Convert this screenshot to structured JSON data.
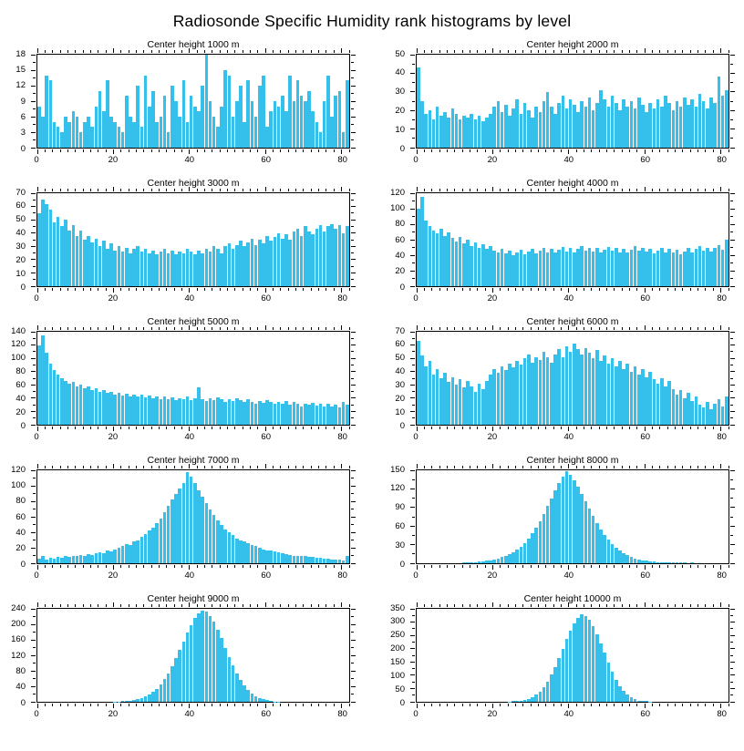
{
  "title": "Radiosonde Specific Humidity rank histograms by level",
  "style": {
    "bar_color": "#35c0ec",
    "axis_color": "#000000",
    "background": "#ffffff"
  },
  "chart_data": [
    {
      "type": "bar",
      "title": "Center height 1000 m",
      "ylim": [
        0,
        18
      ],
      "ystep": 3,
      "xlim": [
        0,
        82
      ],
      "xticks": [
        0,
        20,
        40,
        60,
        80
      ],
      "xminor_step": 2,
      "values": [
        8,
        6,
        14,
        13,
        5,
        4,
        3,
        6,
        5,
        7,
        6,
        3,
        5,
        6,
        4,
        8,
        11,
        7,
        13,
        6,
        5,
        4,
        3,
        10,
        6,
        5,
        12,
        4,
        14,
        8,
        11,
        5,
        6,
        10,
        3,
        12,
        9,
        6,
        13,
        5,
        10,
        8,
        7,
        12,
        18,
        9,
        6,
        4,
        8,
        15,
        14,
        6,
        9,
        12,
        5,
        13,
        9,
        6,
        12,
        14,
        4,
        7,
        9,
        8,
        10,
        7,
        14,
        9,
        13,
        10,
        9,
        11,
        7,
        5,
        3,
        9,
        14,
        6,
        10,
        11,
        3,
        13
      ]
    },
    {
      "type": "bar",
      "title": "Center height 2000 m",
      "ylim": [
        0,
        50
      ],
      "ystep": 10,
      "xlim": [
        0,
        82
      ],
      "xticks": [
        0,
        20,
        40,
        60,
        80
      ],
      "xminor_step": 2,
      "values": [
        43,
        25,
        18,
        20,
        15,
        22,
        17,
        19,
        16,
        21,
        18,
        15,
        17,
        16,
        18,
        15,
        17,
        14,
        16,
        18,
        22,
        25,
        19,
        23,
        17,
        21,
        26,
        18,
        24,
        20,
        16,
        22,
        19,
        25,
        30,
        22,
        18,
        24,
        28,
        21,
        26,
        23,
        19,
        25,
        22,
        27,
        20,
        24,
        31,
        26,
        22,
        28,
        24,
        20,
        26,
        22,
        25,
        21,
        27,
        23,
        19,
        24,
        21,
        26,
        22,
        28,
        24,
        20,
        25,
        22,
        27,
        23,
        26,
        22,
        29,
        25,
        21,
        27,
        24,
        38,
        28,
        31
      ]
    },
    {
      "type": "bar",
      "title": "Center height 3000 m",
      "ylim": [
        0,
        70
      ],
      "ystep": 10,
      "xlim": [
        0,
        82
      ],
      "xticks": [
        0,
        20,
        40,
        60,
        80
      ],
      "xminor_step": 2,
      "values": [
        55,
        65,
        62,
        58,
        48,
        52,
        45,
        50,
        42,
        46,
        38,
        42,
        35,
        38,
        33,
        36,
        30,
        34,
        28,
        32,
        27,
        30,
        26,
        29,
        25,
        28,
        30,
        26,
        28,
        25,
        27,
        24,
        26,
        28,
        25,
        27,
        24,
        26,
        25,
        28,
        26,
        24,
        27,
        25,
        28,
        26,
        30,
        28,
        25,
        30,
        32,
        28,
        31,
        34,
        30,
        33,
        36,
        31,
        35,
        32,
        38,
        34,
        37,
        40,
        36,
        39,
        35,
        41,
        43,
        38,
        45,
        41,
        39,
        43,
        46,
        41,
        45,
        47,
        43,
        46,
        40,
        45
      ]
    },
    {
      "type": "bar",
      "title": "Center height 4000 m",
      "ylim": [
        0,
        120
      ],
      "ystep": 20,
      "xlim": [
        0,
        82
      ],
      "xticks": [
        0,
        20,
        40,
        60,
        80
      ],
      "xminor_step": 2,
      "values": [
        100,
        115,
        85,
        78,
        72,
        68,
        74,
        65,
        70,
        62,
        58,
        63,
        55,
        60,
        52,
        56,
        50,
        54,
        48,
        52,
        46,
        44,
        48,
        42,
        46,
        40,
        44,
        47,
        41,
        45,
        48,
        42,
        46,
        50,
        44,
        48,
        43,
        47,
        51,
        45,
        49,
        44,
        48,
        52,
        46,
        50,
        45,
        49,
        43,
        47,
        51,
        46,
        50,
        44,
        48,
        43,
        47,
        52,
        46,
        50,
        45,
        48,
        42,
        46,
        50,
        44,
        48,
        43,
        47,
        41,
        45,
        49,
        44,
        48,
        52,
        46,
        50,
        45,
        49,
        53,
        47,
        60
      ]
    },
    {
      "type": "bar",
      "title": "Center height 5000 m",
      "ylim": [
        0,
        140
      ],
      "ystep": 20,
      "xlim": [
        0,
        82
      ],
      "xticks": [
        0,
        20,
        40,
        60,
        80
      ],
      "xminor_step": 2,
      "values": [
        120,
        135,
        108,
        92,
        82,
        75,
        70,
        66,
        62,
        65,
        58,
        61,
        55,
        58,
        52,
        55,
        50,
        52,
        48,
        50,
        46,
        48,
        44,
        47,
        43,
        46,
        42,
        45,
        41,
        44,
        40,
        43,
        39,
        42,
        38,
        41,
        37,
        40,
        38,
        42,
        37,
        40,
        56,
        38,
        36,
        40,
        37,
        41,
        38,
        35,
        39,
        36,
        40,
        37,
        34,
        38,
        35,
        32,
        36,
        33,
        37,
        34,
        31,
        35,
        32,
        36,
        30,
        34,
        31,
        28,
        32,
        30,
        33,
        29,
        32,
        28,
        31,
        27,
        30,
        26,
        34,
        30
      ]
    },
    {
      "type": "bar",
      "title": "Center height 6000 m",
      "ylim": [
        0,
        70
      ],
      "ystep": 10,
      "xlim": [
        0,
        82
      ],
      "xticks": [
        0,
        20,
        40,
        60,
        80
      ],
      "xminor_step": 2,
      "values": [
        63,
        52,
        44,
        48,
        38,
        42,
        35,
        39,
        32,
        36,
        30,
        34,
        28,
        33,
        29,
        25,
        31,
        27,
        33,
        38,
        42,
        39,
        44,
        41,
        46,
        43,
        48,
        45,
        50,
        53,
        47,
        51,
        49,
        55,
        51,
        47,
        53,
        57,
        51,
        59,
        55,
        61,
        57,
        53,
        58,
        54,
        50,
        56,
        48,
        52,
        46,
        50,
        44,
        48,
        42,
        46,
        40,
        44,
        38,
        42,
        36,
        40,
        34,
        31,
        35,
        29,
        33,
        27,
        23,
        26,
        20,
        24,
        18,
        21,
        15,
        13,
        17,
        12,
        16,
        19,
        14,
        21
      ]
    },
    {
      "type": "bar",
      "title": "Center height 7000 m",
      "ylim": [
        0,
        120
      ],
      "ystep": 20,
      "xlim": [
        0,
        82
      ],
      "xticks": [
        0,
        20,
        40,
        60,
        80
      ],
      "xminor_step": 2,
      "values": [
        6,
        9,
        5,
        7,
        6,
        8,
        7,
        9,
        8,
        10,
        9,
        11,
        10,
        12,
        11,
        13,
        14,
        13,
        16,
        15,
        18,
        20,
        22,
        25,
        24,
        28,
        30,
        34,
        38,
        42,
        46,
        52,
        58,
        66,
        74,
        82,
        90,
        96,
        104,
        118,
        112,
        104,
        94,
        86,
        78,
        70,
        62,
        55,
        49,
        44,
        40,
        36,
        32,
        30,
        28,
        26,
        24,
        22,
        20,
        18,
        17,
        16,
        15,
        14,
        13,
        12,
        11,
        10,
        10,
        9,
        9,
        8,
        8,
        7,
        7,
        6,
        6,
        5,
        5,
        5,
        4,
        10
      ]
    },
    {
      "type": "bar",
      "title": "Center height 8000 m",
      "ylim": [
        0,
        150
      ],
      "ystep": 30,
      "xlim": [
        0,
        82
      ],
      "xticks": [
        0,
        20,
        40,
        60,
        80
      ],
      "xminor_step": 2,
      "values": [
        0,
        0,
        0,
        0,
        0,
        0,
        0,
        0,
        0,
        0,
        0,
        0,
        1,
        1,
        2,
        2,
        3,
        3,
        4,
        5,
        6,
        8,
        10,
        12,
        15,
        18,
        22,
        27,
        33,
        40,
        48,
        58,
        68,
        80,
        92,
        105,
        118,
        130,
        140,
        148,
        143,
        134,
        124,
        112,
        100,
        88,
        76,
        65,
        55,
        46,
        38,
        31,
        25,
        20,
        16,
        13,
        10,
        8,
        6,
        5,
        4,
        3,
        3,
        2,
        2,
        2,
        1,
        1,
        1,
        1,
        1,
        0,
        1,
        0,
        0,
        0,
        0,
        0,
        0,
        0,
        0,
        0
      ]
    },
    {
      "type": "bar",
      "title": "Center height 9000 m",
      "ylim": [
        0,
        240
      ],
      "ystep": 40,
      "xlim": [
        0,
        82
      ],
      "xticks": [
        0,
        20,
        40,
        60,
        80
      ],
      "xminor_step": 2,
      "values": [
        0,
        0,
        0,
        0,
        0,
        0,
        0,
        0,
        0,
        0,
        0,
        0,
        0,
        0,
        0,
        0,
        0,
        0,
        0,
        0,
        1,
        1,
        2,
        2,
        3,
        4,
        6,
        9,
        13,
        18,
        25,
        34,
        45,
        58,
        74,
        92,
        112,
        134,
        156,
        178,
        198,
        216,
        228,
        236,
        232,
        222,
        206,
        186,
        164,
        140,
        116,
        94,
        74,
        56,
        42,
        30,
        21,
        14,
        9,
        6,
        4,
        2,
        1,
        1,
        0,
        0,
        0,
        0,
        0,
        0,
        0,
        0,
        0,
        0,
        0,
        0,
        0,
        0,
        0,
        0,
        0,
        0
      ]
    },
    {
      "type": "bar",
      "title": "Center height 10000 m",
      "ylim": [
        0,
        350
      ],
      "ystep": 50,
      "xlim": [
        0,
        82
      ],
      "xticks": [
        0,
        20,
        40,
        60,
        80
      ],
      "xminor_step": 2,
      "values": [
        0,
        0,
        0,
        0,
        0,
        0,
        0,
        0,
        0,
        0,
        0,
        0,
        0,
        0,
        0,
        0,
        0,
        0,
        0,
        0,
        0,
        0,
        0,
        0,
        1,
        2,
        3,
        5,
        8,
        12,
        18,
        27,
        39,
        55,
        76,
        102,
        132,
        165,
        200,
        236,
        268,
        295,
        316,
        330,
        324,
        308,
        284,
        254,
        220,
        184,
        148,
        114,
        84,
        59,
        40,
        26,
        16,
        9,
        5,
        3,
        2,
        1,
        0,
        0,
        0,
        0,
        0,
        0,
        0,
        0,
        0,
        0,
        0,
        0,
        0,
        0,
        0,
        0,
        0,
        0,
        0,
        0
      ]
    }
  ]
}
